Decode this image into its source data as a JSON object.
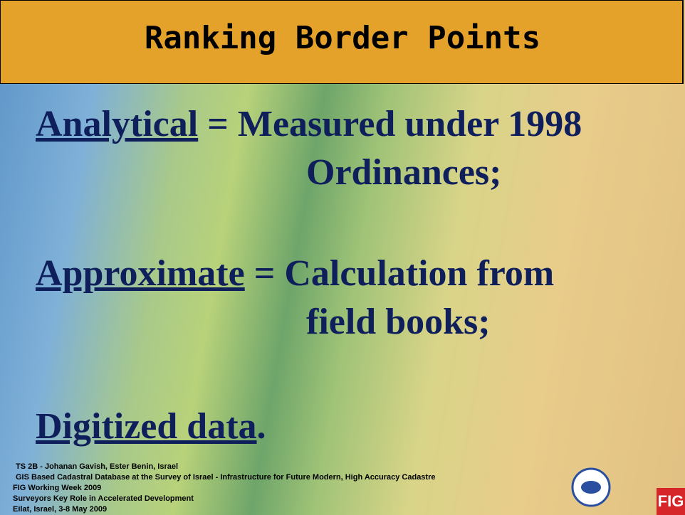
{
  "header": {
    "title": "Ranking Border Points"
  },
  "items": [
    {
      "term": "Analytical",
      "separator": "=",
      "line1": "Measured under 1998",
      "line2": "Ordinances;"
    },
    {
      "term": "Approximate",
      "separator": "=",
      "line1": "Calculation from",
      "line2": "field books;"
    },
    {
      "term": "Digitized data",
      "end": "."
    }
  ],
  "footer": {
    "lines": [
      "TS 2B - Johanan Gavish, Ester Benin, Israel",
      "GIS Based Cadastral Database at the Survey of Israel - Infrastructure for  Future Modern, High Accuracy Cadastre",
      "FIG Working Week 2009",
      "Surveyors Key Role in Accelerated Development",
      "Eilat, Israel, 3-8 May 2009"
    ],
    "logo": "FIG"
  }
}
